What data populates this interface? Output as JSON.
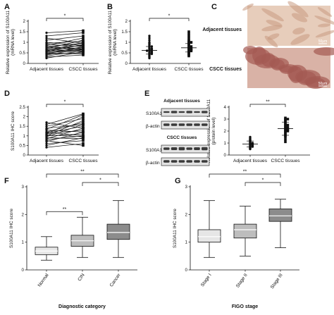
{
  "panel_letters": [
    "A",
    "B",
    "C",
    "D",
    "E",
    "F",
    "G"
  ],
  "colors": {
    "ink": "#111111",
    "box_normal": "#e6e6e6",
    "box_mid": "#bdbdbd",
    "box_dark": "#8c8c8c",
    "tissue_light": "#e7cdbb",
    "tissue_dark": "#a45a52",
    "blot_band": "#3a3a3a"
  },
  "chart_data": [
    {
      "id": "A",
      "type": "line",
      "ylabel": "Relative expression of S100A11 (mRNA level)",
      "categories": [
        "Adjacent tissues",
        "CSCC tissues"
      ],
      "yticks": [
        0.0,
        0.5,
        1.0,
        1.5,
        2.0
      ],
      "ylim": [
        0,
        2.0
      ],
      "significance": "*",
      "pairs": [
        [
          0.25,
          0.55
        ],
        [
          0.3,
          0.4
        ],
        [
          0.35,
          0.6
        ],
        [
          0.4,
          0.7
        ],
        [
          0.45,
          0.5
        ],
        [
          0.45,
          0.8
        ],
        [
          0.5,
          0.65
        ],
        [
          0.5,
          0.45
        ],
        [
          0.55,
          0.9
        ],
        [
          0.55,
          0.7
        ],
        [
          0.6,
          0.55
        ],
        [
          0.6,
          1.0
        ],
        [
          0.65,
          0.75
        ],
        [
          0.65,
          0.6
        ],
        [
          0.7,
          0.85
        ],
        [
          0.7,
          1.1
        ],
        [
          0.75,
          0.65
        ],
        [
          0.8,
          0.95
        ],
        [
          0.8,
          0.7
        ],
        [
          0.85,
          1.2
        ],
        [
          0.9,
          0.8
        ],
        [
          0.95,
          1.05
        ],
        [
          1.0,
          0.85
        ],
        [
          1.1,
          1.3
        ],
        [
          1.2,
          0.95
        ],
        [
          1.3,
          1.45
        ],
        [
          1.45,
          1.55
        ]
      ]
    },
    {
      "id": "B",
      "type": "scatter",
      "ylabel": "Relative expression of S100A11 (mRNA level)",
      "categories": [
        "Adjacent tissues",
        "CSCC tissues"
      ],
      "yticks": [
        0.0,
        0.5,
        1.0,
        1.5,
        2.0
      ],
      "ylim": [
        0,
        2.0
      ],
      "significance": "*",
      "series": [
        {
          "values": [
            0.25,
            0.3,
            0.35,
            0.4,
            0.45,
            0.45,
            0.5,
            0.5,
            0.55,
            0.55,
            0.6,
            0.6,
            0.6,
            0.65,
            0.65,
            0.7,
            0.7,
            0.75,
            0.8,
            0.8,
            0.85,
            0.9,
            0.95,
            1.0,
            1.1,
            1.2,
            1.3
          ],
          "mean": 0.62,
          "sd": 0.18
        },
        {
          "values": [
            0.35,
            0.4,
            0.45,
            0.5,
            0.55,
            0.6,
            0.6,
            0.65,
            0.65,
            0.7,
            0.7,
            0.75,
            0.8,
            0.8,
            0.85,
            0.9,
            0.95,
            1.0,
            1.0,
            1.05,
            1.1,
            1.2,
            1.3,
            1.4,
            1.5
          ],
          "mean": 0.74,
          "sd": 0.2
        }
      ]
    },
    {
      "id": "D",
      "type": "line",
      "ylabel": "S100A11 IHC score",
      "categories": [
        "Adjacent tissues",
        "CSCC tissues"
      ],
      "yticks": [
        0.0,
        0.5,
        1.0,
        1.5,
        2.0,
        2.5
      ],
      "ylim": [
        0,
        2.5
      ],
      "significance": "*",
      "pairs": [
        [
          0.4,
          0.6
        ],
        [
          0.5,
          0.9
        ],
        [
          0.6,
          0.75
        ],
        [
          0.7,
          1.2
        ],
        [
          0.75,
          0.5
        ],
        [
          0.8,
          1.0
        ],
        [
          0.85,
          1.4
        ],
        [
          0.9,
          0.85
        ],
        [
          0.95,
          1.6
        ],
        [
          1.0,
          1.1
        ],
        [
          1.0,
          1.8
        ],
        [
          1.05,
          0.95
        ],
        [
          1.1,
          1.3
        ],
        [
          1.1,
          2.0
        ],
        [
          1.15,
          1.5
        ],
        [
          1.2,
          1.0
        ],
        [
          1.2,
          1.7
        ],
        [
          1.3,
          1.2
        ],
        [
          1.35,
          2.1
        ],
        [
          1.4,
          1.6
        ],
        [
          1.5,
          1.9
        ],
        [
          1.6,
          2.15
        ],
        [
          1.7,
          1.4
        ]
      ]
    },
    {
      "id": "E",
      "type": "scatter",
      "ylabel": "Relative expression of S100A11 (protein level)",
      "categories": [
        "Adjacent tissues",
        "CSCC tissues"
      ],
      "yticks": [
        0,
        1,
        2,
        3,
        4
      ],
      "ylim": [
        0,
        4
      ],
      "significance": "**",
      "series": [
        {
          "values": [
            0.5,
            0.55,
            0.6,
            0.65,
            0.7,
            0.7,
            0.75,
            0.8,
            0.8,
            0.85,
            0.85,
            0.9,
            0.9,
            0.95,
            0.95,
            1.0,
            1.0,
            1.05,
            1.1,
            1.15,
            1.2,
            1.25,
            1.3,
            1.4,
            1.5
          ],
          "mean": 0.92,
          "sd": 0.25
        },
        {
          "values": [
            1.1,
            1.3,
            1.5,
            1.6,
            1.7,
            1.8,
            1.9,
            2.0,
            2.0,
            2.1,
            2.1,
            2.2,
            2.2,
            2.3,
            2.3,
            2.4,
            2.5,
            2.5,
            2.6,
            2.7,
            2.8,
            2.9,
            3.0,
            3.0,
            3.1
          ],
          "mean": 2.2,
          "sd": 0.55
        }
      ]
    },
    {
      "id": "F",
      "type": "box",
      "ylabel": "S100A11 IHC score",
      "xlabel": "Diagnostic category",
      "categories": [
        "Normal",
        "CIN",
        "Cancer"
      ],
      "yticks": [
        0,
        1,
        2,
        3
      ],
      "ylim": [
        0,
        3
      ],
      "boxes": [
        {
          "min": 0.35,
          "q1": 0.55,
          "median": 0.68,
          "q3": 0.82,
          "max": 1.2
        },
        {
          "min": 0.45,
          "q1": 0.85,
          "median": 1.05,
          "q3": 1.25,
          "max": 1.9
        },
        {
          "min": 0.45,
          "q1": 1.1,
          "median": 1.35,
          "q3": 1.65,
          "max": 2.5
        }
      ],
      "brackets": [
        {
          "from": 0,
          "to": 1,
          "label": "**"
        },
        {
          "from": 1,
          "to": 2,
          "label": "*"
        },
        {
          "from": 0,
          "to": 2,
          "label": "**"
        }
      ]
    },
    {
      "id": "G",
      "type": "box",
      "ylabel": "S100A11 IHC score",
      "xlabel": "FIGO stage",
      "categories": [
        "Stage I",
        "Stage II",
        "Stage III"
      ],
      "yticks": [
        0,
        1,
        2,
        3
      ],
      "ylim": [
        0,
        3
      ],
      "boxes": [
        {
          "min": 0.45,
          "q1": 1.0,
          "median": 1.2,
          "q3": 1.45,
          "max": 2.5
        },
        {
          "min": 0.5,
          "q1": 1.15,
          "median": 1.45,
          "q3": 1.65,
          "max": 2.3
        },
        {
          "min": 0.8,
          "q1": 1.75,
          "median": 1.95,
          "q3": 2.2,
          "max": 2.55
        }
      ],
      "brackets": [
        {
          "from": 1,
          "to": 2,
          "label": "*"
        },
        {
          "from": 0,
          "to": 2,
          "label": "**"
        }
      ]
    }
  ],
  "panel_c": {
    "labels": [
      "Adjacent tissues",
      "CSCC tissues"
    ],
    "scale_bar": "50μm"
  },
  "panel_e_blot": {
    "groups": [
      {
        "title": "Adjacent tissues",
        "rows": [
          "S100A11",
          "β-actin"
        ]
      },
      {
        "title": "CSCC tissues",
        "rows": [
          "S100A11",
          "β-actin"
        ]
      }
    ],
    "lanes": 6
  }
}
